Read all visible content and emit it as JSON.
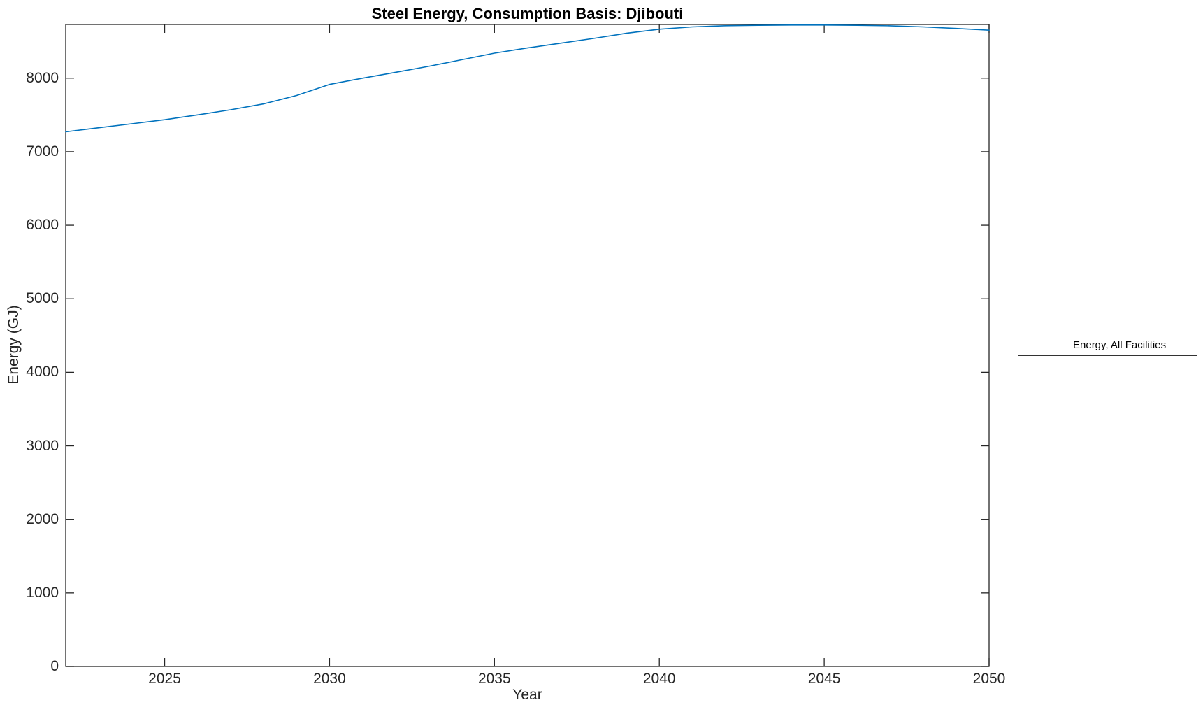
{
  "colors": {
    "line": "#0072BD",
    "axis": "#262626",
    "title_text": "#000000",
    "background": "#FFFFFF",
    "legend_border": "#333333"
  },
  "chart_data": {
    "type": "line",
    "title": "Steel Energy, Consumption Basis: Djibouti",
    "xlabel": "Year",
    "ylabel": "Energy (GJ)",
    "xlim": [
      2022,
      2050
    ],
    "ylim": [
      0,
      8730
    ],
    "x_ticks": [
      2025,
      2030,
      2035,
      2040,
      2045,
      2050
    ],
    "y_ticks": [
      0,
      1000,
      2000,
      3000,
      4000,
      5000,
      6000,
      7000,
      8000
    ],
    "grid": false,
    "box": true,
    "legend_position": "outside-right",
    "x": [
      2022,
      2023,
      2024,
      2025,
      2026,
      2027,
      2028,
      2029,
      2030,
      2031,
      2032,
      2033,
      2034,
      2035,
      2036,
      2037,
      2038,
      2039,
      2040,
      2041,
      2042,
      2043,
      2044,
      2045,
      2046,
      2047,
      2048,
      2049,
      2050
    ],
    "series": [
      {
        "name": "Energy, All Facilities",
        "color": "#0072BD",
        "values": [
          7270,
          7325,
          7380,
          7435,
          7500,
          7570,
          7650,
          7765,
          7915,
          8000,
          8080,
          8160,
          8250,
          8340,
          8410,
          8475,
          8540,
          8610,
          8665,
          8697,
          8713,
          8719,
          8722,
          8722,
          8719,
          8712,
          8697,
          8676,
          8652
        ]
      }
    ]
  }
}
